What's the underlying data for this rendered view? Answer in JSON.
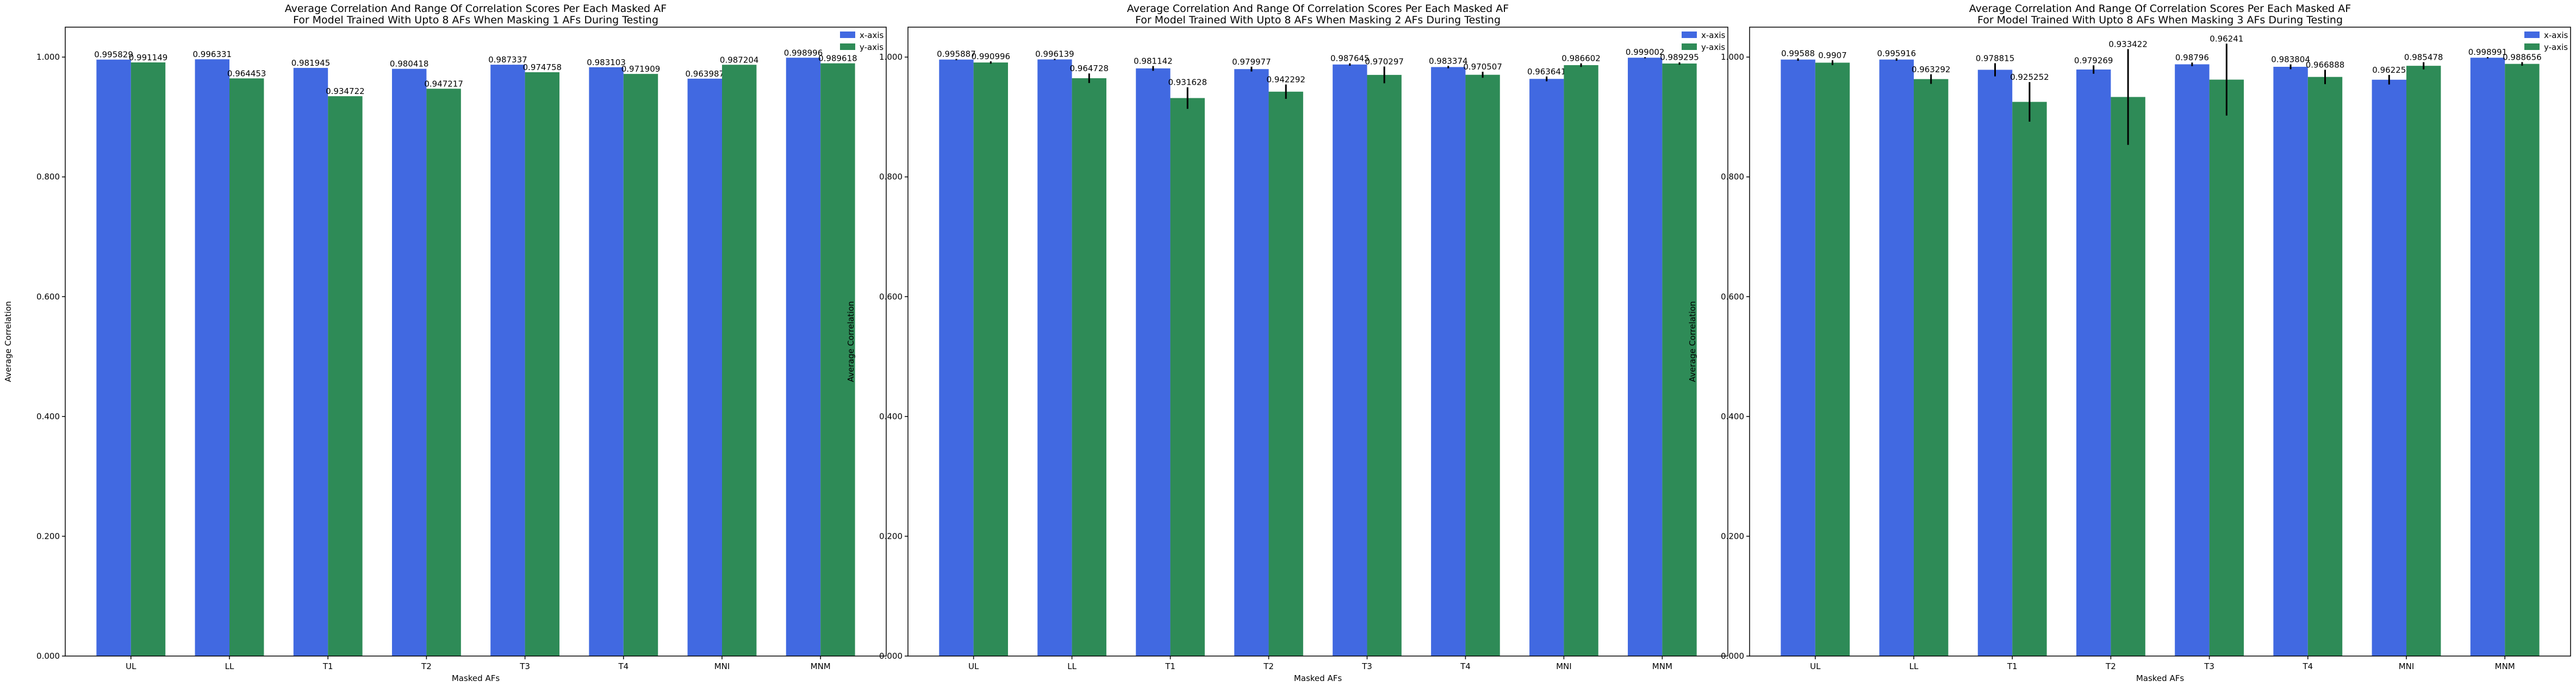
{
  "colors": {
    "x_axis": "#4169e1",
    "y_axis": "#2e8b57",
    "error_bar": "#000000",
    "frame": "#000000"
  },
  "chart_data": [
    {
      "type": "bar",
      "title_line1": "Average Correlation And Range Of Correlation Scores Per Each Masked AF",
      "title_line2": "For Model Trained With Upto 8 AFs When Masking 1 AFs During Testing",
      "xlabel": "Masked AFs",
      "ylabel": "Average Correlation",
      "ylim": [
        0,
        1.05
      ],
      "yticks": [
        "0.000",
        "0.200",
        "0.400",
        "0.600",
        "0.800",
        "1.000"
      ],
      "ytick_values": [
        0,
        0.2,
        0.4,
        0.6,
        0.8,
        1.0
      ],
      "legend_position": "upper-right",
      "categories": [
        "UL",
        "LL",
        "T1",
        "T2",
        "T3",
        "T4",
        "MNI",
        "MNM"
      ],
      "series": [
        {
          "name": "x-axis",
          "color": "#4169e1",
          "values": [
            0.995829,
            0.996331,
            0.981945,
            0.980418,
            0.987337,
            0.983103,
            0.963987,
            0.998996
          ],
          "labels": [
            "0.995829",
            "0.996331",
            "0.981945",
            "0.980418",
            "0.987337",
            "0.983103",
            "0.963987",
            "0.998996"
          ],
          "err_low": [
            0,
            0,
            0,
            0,
            0,
            0,
            0,
            0
          ],
          "err_high": [
            0,
            0,
            0,
            0,
            0,
            0,
            0,
            0
          ]
        },
        {
          "name": "y-axis",
          "color": "#2e8b57",
          "values": [
            0.991149,
            0.964453,
            0.934722,
            0.947217,
            0.974758,
            0.971909,
            0.987204,
            0.989618
          ],
          "labels": [
            "0.991149",
            "0.964453",
            "0.934722",
            "0.947217",
            "0.974758",
            "0.971909",
            "0.987204",
            "0.989618"
          ],
          "err_low": [
            0,
            0,
            0,
            0,
            0,
            0,
            0,
            0
          ],
          "err_high": [
            0,
            0,
            0,
            0,
            0,
            0,
            0,
            0
          ]
        }
      ]
    },
    {
      "type": "bar",
      "title_line1": "Average Correlation And Range Of Correlation Scores Per Each Masked AF",
      "title_line2": "For Model Trained With Upto 8 AFs When Masking 2 AFs During Testing",
      "xlabel": "Masked AFs",
      "ylabel": "Average Correlation",
      "ylim": [
        0,
        1.05
      ],
      "yticks": [
        "0.000",
        "0.200",
        "0.400",
        "0.600",
        "0.800",
        "1.000"
      ],
      "ytick_values": [
        0,
        0.2,
        0.4,
        0.6,
        0.8,
        1.0
      ],
      "legend_position": "upper-right",
      "categories": [
        "UL",
        "LL",
        "T1",
        "T2",
        "T3",
        "T4",
        "MNI",
        "MNM"
      ],
      "series": [
        {
          "name": "x-axis",
          "color": "#4169e1",
          "values": [
            0.995887,
            0.996139,
            0.981142,
            0.979977,
            0.987645,
            0.983374,
            0.963641,
            0.999002
          ],
          "labels": [
            "0.995887",
            "0.996139",
            "0.981142",
            "0.979977",
            "0.987645",
            "0.983374",
            "0.963641",
            "0.999002"
          ],
          "err_low": [
            0.001,
            0.001,
            0.004,
            0.004,
            0.002,
            0.002,
            0.004,
            0.001
          ],
          "err_high": [
            0.001,
            0.001,
            0.004,
            0.004,
            0.002,
            0.002,
            0.004,
            0.001
          ]
        },
        {
          "name": "y-axis",
          "color": "#2e8b57",
          "values": [
            0.990996,
            0.964728,
            0.931628,
            0.942292,
            0.970297,
            0.970507,
            0.986602,
            0.989295
          ],
          "labels": [
            "0.990996",
            "0.964728",
            "0.931628",
            "0.942292",
            "0.970297",
            "0.970507",
            "0.986602",
            "0.989295"
          ],
          "err_low": [
            0.002,
            0.008,
            0.018,
            0.012,
            0.014,
            0.005,
            0.003,
            0.002
          ],
          "err_high": [
            0.002,
            0.008,
            0.018,
            0.012,
            0.014,
            0.005,
            0.003,
            0.002
          ]
        }
      ]
    },
    {
      "type": "bar",
      "title_line1": "Average Correlation And Range Of Correlation Scores Per Each Masked AF",
      "title_line2": "For Model Trained With Upto 8 AFs When Masking 3 AFs During Testing",
      "xlabel": "Masked AFs",
      "ylabel": "Average Correlation",
      "ylim": [
        0,
        1.05
      ],
      "yticks": [
        "0.000",
        "0.200",
        "0.400",
        "0.600",
        "0.800",
        "1.000"
      ],
      "ytick_values": [
        0,
        0.2,
        0.4,
        0.6,
        0.8,
        1.0
      ],
      "legend_position": "upper-right",
      "categories": [
        "UL",
        "LL",
        "T1",
        "T2",
        "T3",
        "T4",
        "MNI",
        "MNM"
      ],
      "series": [
        {
          "name": "x-axis",
          "color": "#4169e1",
          "values": [
            0.99588,
            0.995916,
            0.978815,
            0.979269,
            0.98796,
            0.983804,
            0.96225,
            0.998991
          ],
          "labels": [
            "0.99588",
            "0.995916",
            "0.978815",
            "0.979269",
            "0.98796",
            "0.983804",
            "0.96225",
            "0.998991"
          ],
          "err_low": [
            0.002,
            0.002,
            0.011,
            0.007,
            0.003,
            0.004,
            0.008,
            0.001
          ],
          "err_high": [
            0.002,
            0.002,
            0.011,
            0.007,
            0.003,
            0.004,
            0.008,
            0.001
          ]
        },
        {
          "name": "y-axis",
          "color": "#2e8b57",
          "values": [
            0.9907,
            0.963292,
            0.925252,
            0.933422,
            0.96241,
            0.966888,
            0.985478,
            0.988656
          ],
          "labels": [
            "0.9907",
            "0.963292",
            "0.925252",
            "0.933422",
            "0.96241",
            "0.966888",
            "0.985478",
            "0.988656"
          ],
          "err_low": [
            0.004,
            0.008,
            0.033,
            0.08,
            0.06,
            0.012,
            0.006,
            0.003
          ],
          "err_high": [
            0.004,
            0.008,
            0.033,
            0.08,
            0.06,
            0.012,
            0.006,
            0.003
          ]
        }
      ]
    }
  ]
}
